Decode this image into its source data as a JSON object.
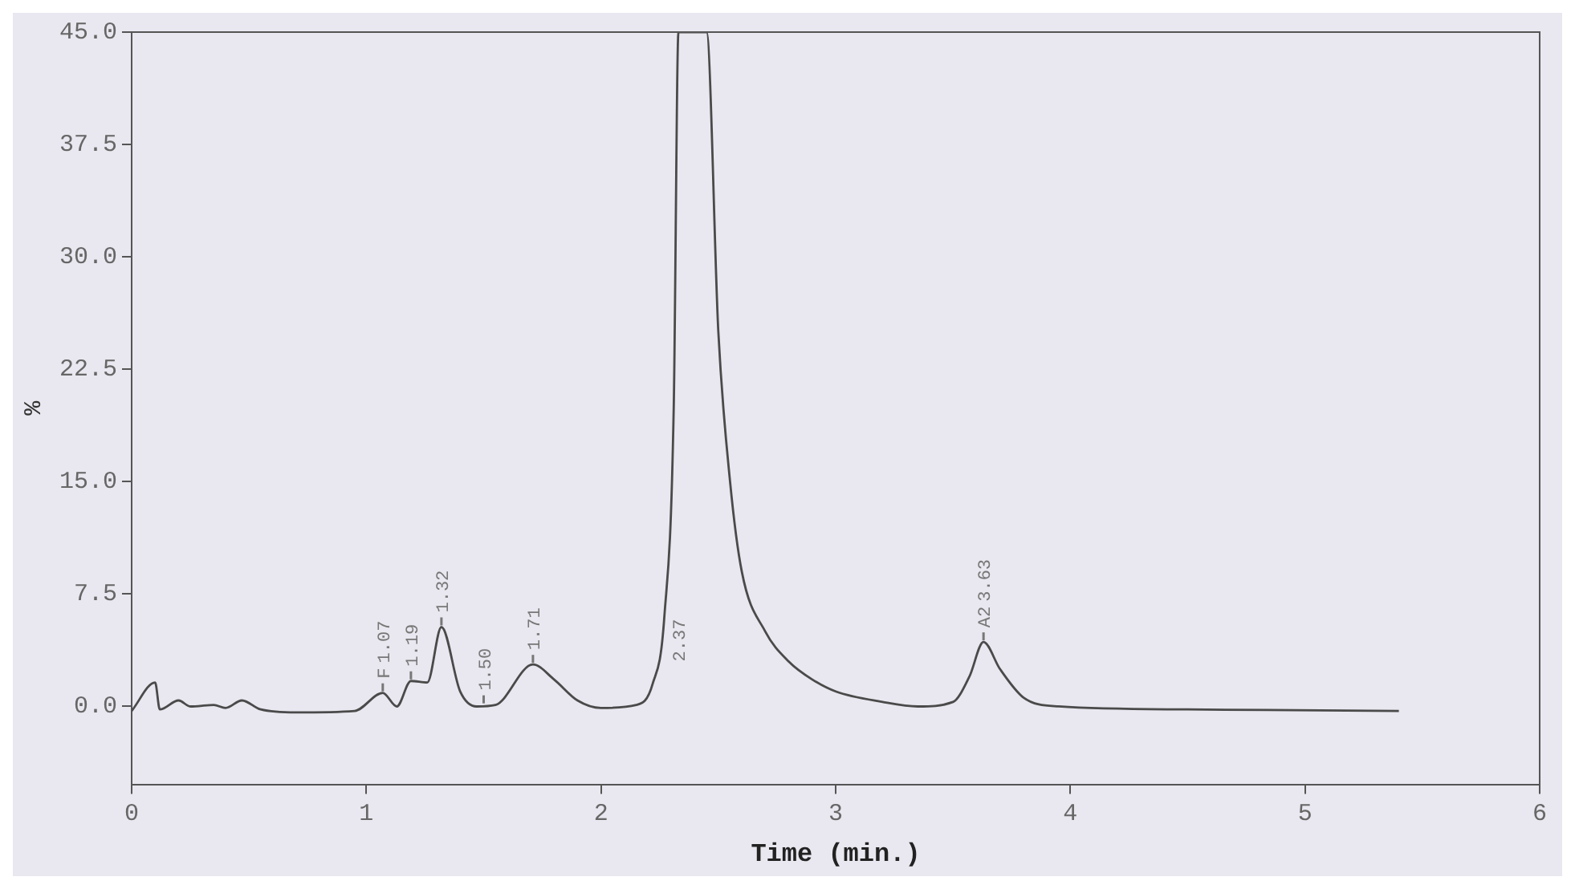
{
  "chart_data": {
    "type": "line",
    "xlabel": "Time (min.)",
    "ylabel": "%",
    "x": [
      0,
      0.1,
      0.12,
      0.2,
      0.25,
      0.35,
      0.4,
      0.47,
      0.55,
      0.7,
      0.95,
      1.07,
      1.13,
      1.19,
      1.26,
      1.32,
      1.4,
      1.47,
      1.55,
      1.71,
      1.8,
      1.9,
      2.0,
      2.15,
      2.22,
      2.27,
      2.31,
      2.33,
      2.45,
      2.5,
      2.55,
      2.6,
      2.7,
      2.8,
      2.9,
      3.0,
      3.2,
      3.35,
      3.5,
      3.57,
      3.63,
      3.7,
      3.8,
      3.95,
      4.5,
      5.4
    ],
    "series": [
      {
        "color": "#4a4a4a",
        "values": [
          -0.3,
          1.6,
          -0.2,
          0.4,
          0.0,
          0.1,
          -0.1,
          0.4,
          -0.2,
          -0.4,
          -0.3,
          0.9,
          0.0,
          1.7,
          1.6,
          5.3,
          1.0,
          0.0,
          0.1,
          2.8,
          1.8,
          0.4,
          -0.1,
          0.1,
          1.5,
          6,
          20,
          45,
          45,
          25,
          15,
          9,
          5,
          3,
          1.8,
          1.0,
          0.3,
          0.0,
          0.3,
          2,
          4.3,
          2.5,
          0.6,
          0.0,
          -0.2,
          -0.3
        ]
      }
    ],
    "xlim": [
      0,
      6
    ],
    "xticks": [
      0,
      1,
      2,
      3,
      4,
      5,
      6
    ],
    "ylim": [
      -5.2,
      45
    ],
    "yticks": [
      {
        "value": 0,
        "label": "0.0"
      },
      {
        "value": 7.5,
        "label": "7.5"
      },
      {
        "value": 15,
        "label": "15.0"
      },
      {
        "value": 22.5,
        "label": "22.5"
      },
      {
        "value": 30,
        "label": "30.0"
      },
      {
        "value": 37.5,
        "label": "37.5"
      },
      {
        "value": 45,
        "label": "45.0"
      }
    ],
    "grid": false,
    "legend": false,
    "marker": "none",
    "line_style": "solid",
    "annotations": [
      {
        "text": "F",
        "x": 1.07,
        "y": 0.9
      },
      {
        "text": "1.07",
        "x": 1.07,
        "y": 0.9
      },
      {
        "text": "1.19",
        "x": 1.19,
        "y": 1.7
      },
      {
        "text": "1.32",
        "x": 1.32,
        "y": 5.3
      },
      {
        "text": "1.50",
        "x": 1.5,
        "y": 0.1
      },
      {
        "text": "1.71",
        "x": 1.71,
        "y": 2.8
      },
      "2.37",
      {
        "text": "A2",
        "x": 3.63,
        "y": 4.3
      },
      {
        "text": "3.63",
        "x": 3.63,
        "y": 4.3
      }
    ]
  }
}
